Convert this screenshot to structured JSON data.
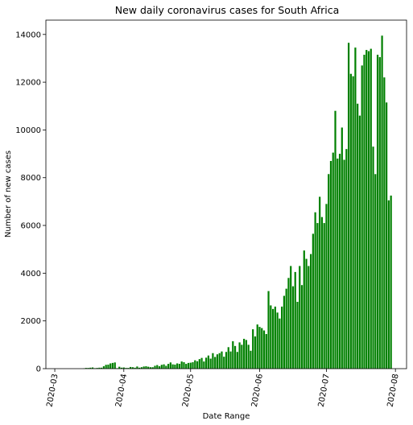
{
  "chart_data": {
    "type": "bar",
    "title": "New daily coronavirus cases for South Africa",
    "xlabel": "Date Range",
    "ylabel": "Number of new cases",
    "x_tick_labels": [
      "2020-03",
      "2020-04",
      "2020-05",
      "2020-06",
      "2020-07",
      "2020-08"
    ],
    "y_tick_labels": [
      "0",
      "2000",
      "4000",
      "6000",
      "8000",
      "10000",
      "12000",
      "14000"
    ],
    "ylim": [
      0,
      14600
    ],
    "xlim": [
      "2020-02-26",
      "2020-08-06"
    ],
    "grid": false,
    "legend": "none",
    "bar_color": "#008000",
    "series": [
      {
        "start_date": "2020-03-05",
        "values": [
          0,
          0,
          0,
          0,
          0,
          0,
          0,
          0,
          0,
          10,
          30,
          30,
          40,
          50,
          20,
          30,
          40,
          40,
          100,
          160,
          170,
          220,
          240,
          260,
          20,
          80,
          40,
          50,
          30,
          30,
          70,
          60,
          40,
          90,
          40,
          60,
          90,
          100,
          80,
          60,
          60,
          120,
          150,
          100,
          160,
          180,
          120,
          200,
          260,
          180,
          170,
          220,
          200,
          300,
          270,
          200,
          240,
          250,
          270,
          350,
          310,
          400,
          450,
          300,
          460,
          550,
          420,
          650,
          490,
          600,
          650,
          720,
          500,
          700,
          900,
          720,
          1150,
          950,
          700,
          1100,
          1000,
          1250,
          1200,
          1000,
          750,
          1650,
          1350,
          1850,
          1750,
          1700,
          1600,
          1450,
          3250,
          2650,
          2500,
          2600,
          2350,
          2100,
          2600,
          3050,
          3350,
          3800,
          4300,
          3450,
          4050,
          2800,
          4300,
          3500,
          4950,
          4600,
          4300,
          4800,
          5650,
          6550,
          6100,
          7200,
          6350,
          6100,
          6900,
          8150,
          8700,
          9050,
          10800,
          8800,
          9000,
          10100,
          8750,
          9200,
          13650,
          12350,
          12250,
          13450,
          11100,
          10600,
          12700,
          13150,
          13350,
          13300,
          13400,
          9300,
          8150,
          13150,
          13050,
          13950,
          12200,
          11150,
          7050,
          7250
        ]
      }
    ]
  }
}
